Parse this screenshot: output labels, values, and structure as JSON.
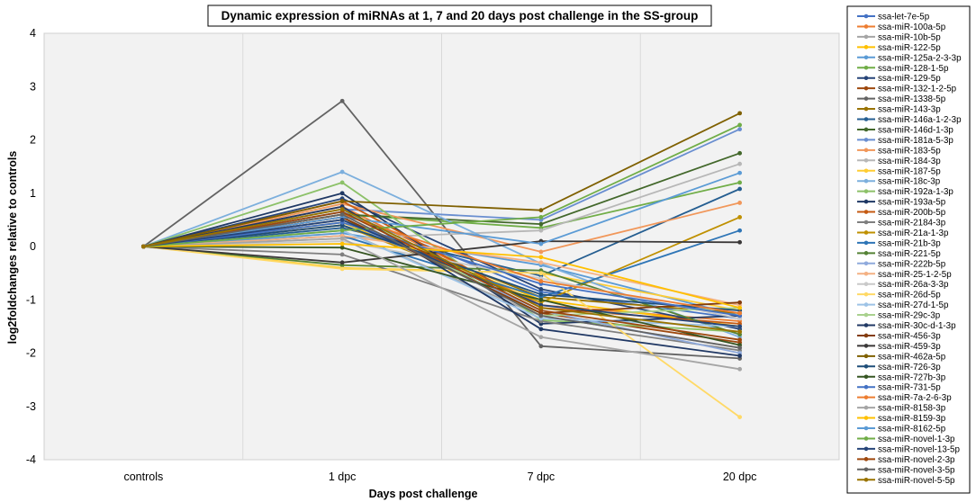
{
  "chart_data": {
    "type": "line",
    "title": "Dynamic expression of miRNAs at 1, 7 and 20 days post challenge in the SS-group",
    "xlabel": "Days post challenge",
    "ylabel": "log2foldchanges relative to controls",
    "categories": [
      "controls",
      "1 dpc",
      "7 dpc",
      "20 dpc"
    ],
    "ylim": [
      -4,
      4
    ],
    "yticks": [
      -4,
      -3,
      -2,
      -1,
      0,
      1,
      2,
      3,
      4
    ],
    "grid": "vertical",
    "legend": "right",
    "series": [
      {
        "name": "ssa-let-7e-5p",
        "color": "#4472C4",
        "values": [
          0,
          0.65,
          -0.85,
          -1.35
        ]
      },
      {
        "name": "ssa-miR-100a-5p",
        "color": "#ED7D31",
        "values": [
          0,
          0.75,
          -1.1,
          -1.4
        ]
      },
      {
        "name": "ssa-miR-10b-5p",
        "color": "#A5A5A5",
        "values": [
          0,
          0.3,
          -1.3,
          -1.9
        ]
      },
      {
        "name": "ssa-miR-122-5p",
        "color": "#FFC000",
        "values": [
          0,
          0.45,
          -1.0,
          -1.5
        ]
      },
      {
        "name": "ssa-miR-125a-2-3-3p",
        "color": "#5B9BD5",
        "values": [
          0,
          0.25,
          -0.35,
          -1.3
        ]
      },
      {
        "name": "ssa-miR-128-1-5p",
        "color": "#70AD47",
        "values": [
          0,
          0.6,
          0.35,
          1.2
        ]
      },
      {
        "name": "ssa-miR-129-5p",
        "color": "#264478",
        "values": [
          0,
          0.9,
          -0.8,
          -1.55
        ]
      },
      {
        "name": "ssa-miR-132-1-2-5p",
        "color": "#9E480E",
        "values": [
          0,
          0.55,
          -1.25,
          -1.8
        ]
      },
      {
        "name": "ssa-miR-1338-5p",
        "color": "#636363",
        "values": [
          0,
          2.73,
          -1.87,
          -2.1
        ]
      },
      {
        "name": "ssa-miR-143-3p",
        "color": "#997300",
        "values": [
          0,
          0.5,
          -0.95,
          -1.25
        ]
      },
      {
        "name": "ssa-miR-146a-1-2-3p",
        "color": "#255E91",
        "values": [
          0,
          0.35,
          -0.55,
          1.08
        ]
      },
      {
        "name": "ssa-miR-146d-1-3p",
        "color": "#43682B",
        "values": [
          0,
          0.6,
          0.42,
          1.75
        ]
      },
      {
        "name": "ssa-miR-181a-5-3p",
        "color": "#698ED0",
        "values": [
          0,
          0.7,
          0.5,
          2.2
        ]
      },
      {
        "name": "ssa-miR-183-5p",
        "color": "#F1975A",
        "values": [
          0,
          0.8,
          -0.1,
          0.82
        ]
      },
      {
        "name": "ssa-miR-184-3p",
        "color": "#B7B7B7",
        "values": [
          0,
          0.15,
          0.3,
          1.55
        ]
      },
      {
        "name": "ssa-miR-187-5p",
        "color": "#FFCD33",
        "values": [
          0,
          -0.4,
          -0.5,
          -1.2
        ]
      },
      {
        "name": "ssa-miR-18c-3p",
        "color": "#7CAFDD",
        "values": [
          0,
          1.4,
          -0.32,
          -1.7
        ]
      },
      {
        "name": "ssa-miR-192a-1-3p",
        "color": "#8CC168",
        "values": [
          0,
          1.2,
          -1.38,
          -1.6
        ]
      },
      {
        "name": "ssa-miR-193a-5p",
        "color": "#1F3864",
        "values": [
          0,
          1.0,
          -1.45,
          -1.3
        ]
      },
      {
        "name": "ssa-miR-200b-5p",
        "color": "#C55A11",
        "values": [
          0,
          0.85,
          -1.15,
          -1.45
        ]
      },
      {
        "name": "ssa-miR-2184-3p",
        "color": "#7F7F7F",
        "values": [
          0,
          -0.15,
          -1.4,
          -1.95
        ]
      },
      {
        "name": "ssa-miR-21a-1-3p",
        "color": "#BF9000",
        "values": [
          0,
          0.4,
          -1.05,
          0.55
        ]
      },
      {
        "name": "ssa-miR-21b-3p",
        "color": "#2E75B6",
        "values": [
          0,
          0.2,
          -0.95,
          0.3
        ]
      },
      {
        "name": "ssa-miR-221-5p",
        "color": "#548235",
        "values": [
          0,
          -0.35,
          -0.45,
          -1.65
        ]
      },
      {
        "name": "ssa-miR-222b-5p",
        "color": "#8FAADC",
        "values": [
          0,
          0.5,
          -1.2,
          -2.0
        ]
      },
      {
        "name": "ssa-miR-25-1-2-5p",
        "color": "#F4B183",
        "values": [
          0,
          0.2,
          -0.3,
          -1.1
        ]
      },
      {
        "name": "ssa-miR-26a-3-3p",
        "color": "#C9C9C9",
        "values": [
          0,
          0.1,
          -0.6,
          -1.35
        ]
      },
      {
        "name": "ssa-miR-26d-5p",
        "color": "#FFD966",
        "values": [
          0,
          -0.42,
          -0.5,
          -3.2
        ]
      },
      {
        "name": "ssa-miR-27d-1-5p",
        "color": "#9DC3E6",
        "values": [
          0,
          0.3,
          -1.35,
          -1.5
        ]
      },
      {
        "name": "ssa-miR-29c-3p",
        "color": "#A9D18E",
        "values": [
          0,
          0.7,
          -1.3,
          -1.15
        ]
      },
      {
        "name": "ssa-miR-30c-d-1-3p",
        "color": "#203864",
        "values": [
          0,
          0.75,
          -1.55,
          -2.05
        ]
      },
      {
        "name": "ssa-miR-456-3p",
        "color": "#843C0C",
        "values": [
          0,
          0.55,
          -1.25,
          -1.05
        ]
      },
      {
        "name": "ssa-miR-459-3p",
        "color": "#3A3838",
        "values": [
          0,
          -0.3,
          0.1,
          0.08
        ]
      },
      {
        "name": "ssa-miR-462a-5p",
        "color": "#7F6000",
        "values": [
          0,
          0.85,
          0.68,
          2.5
        ]
      },
      {
        "name": "ssa-miR-726-3p",
        "color": "#1F4E79",
        "values": [
          0,
          0.4,
          -0.9,
          -1.2
        ]
      },
      {
        "name": "ssa-miR-727b-3p",
        "color": "#375623",
        "values": [
          0,
          -0.02,
          -1.0,
          -1.85
        ]
      },
      {
        "name": "ssa-miR-731-5p",
        "color": "#4472C4",
        "values": [
          0,
          0.45,
          -0.7,
          -1.3
        ]
      },
      {
        "name": "ssa-miR-7a-2-6-3p",
        "color": "#ED7D31",
        "values": [
          0,
          0.6,
          -0.65,
          -1.25
        ]
      },
      {
        "name": "ssa-miR-8158-3p",
        "color": "#A5A5A5",
        "values": [
          0,
          0.15,
          -1.7,
          -2.3
        ]
      },
      {
        "name": "ssa-miR-8159-3p",
        "color": "#FFC000",
        "values": [
          0,
          0.05,
          -0.2,
          -1.15
        ]
      },
      {
        "name": "ssa-miR-8162-5p",
        "color": "#5B9BD5",
        "values": [
          0,
          0.55,
          0.05,
          1.38
        ]
      },
      {
        "name": "ssa-miR-novel-1-3p",
        "color": "#70AD47",
        "values": [
          0,
          0.3,
          0.55,
          2.28
        ]
      },
      {
        "name": "ssa-miR-novel-13-5p",
        "color": "#264478",
        "values": [
          0,
          0.5,
          -1.1,
          -1.5
        ]
      },
      {
        "name": "ssa-miR-novel-2-3p",
        "color": "#9E480E",
        "values": [
          0,
          0.65,
          -1.2,
          -1.75
        ]
      },
      {
        "name": "ssa-miR-novel-3-5p",
        "color": "#636363",
        "values": [
          0,
          0.6,
          -1.3,
          -1.9
        ]
      },
      {
        "name": "ssa-miR-novel-5-5p",
        "color": "#997300",
        "values": [
          0,
          0.7,
          -1.15,
          -1.6
        ]
      }
    ]
  }
}
